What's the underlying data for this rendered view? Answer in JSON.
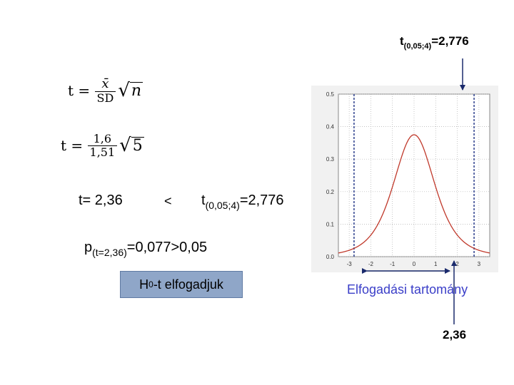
{
  "critical_top": {
    "base": "t",
    "sub": "(0,05;4)",
    "rest": "=2,776"
  },
  "formula1": {
    "lhs": "t =",
    "numerator": "x̄",
    "denominator": "SD",
    "radicand": "n"
  },
  "formula2": {
    "lhs": "t =",
    "numerator": "1,6",
    "denominator": "1,51",
    "radicand": "5"
  },
  "t_value": "t= 2,36",
  "less_than": "<",
  "critical_mid": {
    "base": "t",
    "sub": "(0,05;4)",
    "rest": "=2,776"
  },
  "p_value": {
    "base": "p",
    "sub": "(t=2,36)",
    "rest": "=0,077>0,05"
  },
  "conclusion": {
    "base": "H",
    "sub": "0",
    "rest": "-t elfogadjuk"
  },
  "region_label": "Elfogadási tartomány",
  "observed_label": "2,36",
  "colors": {
    "curve": "#c0392b",
    "region_text": "#3a3ec8",
    "box_fill": "#8fa6c8",
    "dashed": "#2c3e8c"
  },
  "chart_data": {
    "type": "line",
    "title": "",
    "xlim": [
      -3.5,
      3.5
    ],
    "ylim": [
      0,
      0.5
    ],
    "xticks": [
      "-3",
      "-2",
      "-1",
      "0",
      "1",
      "2",
      "3"
    ],
    "yticks": [
      "0.0",
      "0.1",
      "0.2",
      "0.3",
      "0.4",
      "0.5"
    ],
    "distribution": "t, df=4",
    "critical_values": [
      -2.776,
      2.776
    ],
    "observed": 2.36,
    "peak_density": 0.375,
    "grid": true
  }
}
